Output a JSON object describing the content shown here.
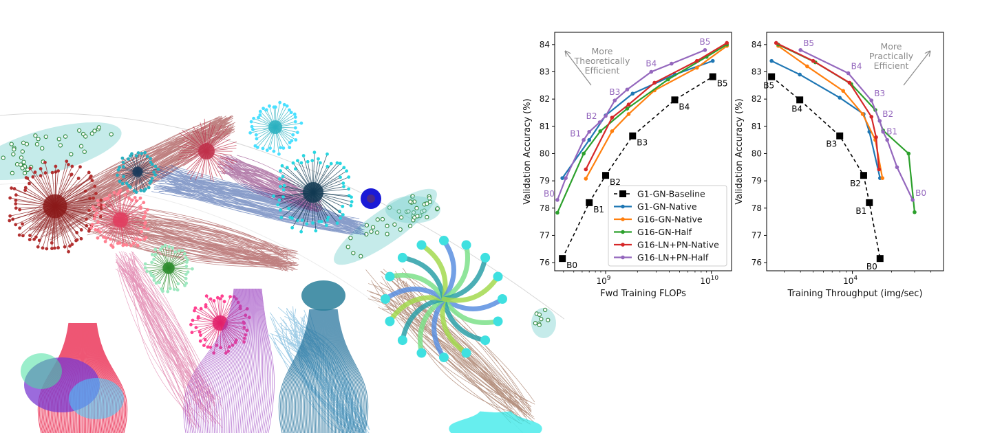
{
  "colors": {
    "baseline": "#000000",
    "g1_native": "#1f77b4",
    "g16_native": "#ff7f0e",
    "g16_half": "#2ca02c",
    "ln_native": "#d62728",
    "ln_half": "#9467bd",
    "annotation": "#8a8a8a"
  },
  "artwork": {
    "name": "network-graph-visualization"
  },
  "chart_data": [
    {
      "type": "line",
      "xscale": "log",
      "xlabel": "Fwd Training FLOPs",
      "ylabel": "Validation Accuracy (%)",
      "xlim": [
        330000000,
        15500000000
      ],
      "ylim": [
        75.7,
        84.45
      ],
      "yticks": [
        76,
        77,
        78,
        79,
        80,
        81,
        82,
        83,
        84
      ],
      "xticks": [
        {
          "value": 1000000000,
          "base": "10",
          "exp": "9"
        },
        {
          "value": 10000000000,
          "base": "10",
          "exp": "10"
        }
      ],
      "annotation": {
        "lines": [
          "More",
          "Theoretically",
          "Efficient"
        ],
        "direction": "up-left"
      },
      "legend": {
        "placement": "lower-right",
        "entries": [
          {
            "label": "G1-GN-Baseline",
            "series": "baseline"
          },
          {
            "label": "G1-GN-Native",
            "series": "g1_native"
          },
          {
            "label": "G16-GN-Native",
            "series": "g16_native"
          },
          {
            "label": "G16-GN-Half",
            "series": "g16_half"
          },
          {
            "label": "G16-LN+PN-Native",
            "series": "ln_native"
          },
          {
            "label": "G16-LN+PN-Half",
            "series": "ln_half"
          }
        ]
      },
      "series": [
        {
          "key": "baseline",
          "name": "G1-GN-Baseline",
          "style": "dashed-square",
          "x": [
            390000000,
            700000000,
            1000000000,
            1800000000,
            4500000000,
            10300000000
          ],
          "y": [
            76.15,
            78.2,
            79.2,
            80.65,
            81.97,
            82.82
          ]
        },
        {
          "key": "g1_native",
          "name": "G1-GN-Native",
          "style": "solid-dot",
          "x": [
            390000000,
            700000000,
            1000000000,
            1800000000,
            4500000000,
            10300000000
          ],
          "y": [
            79.1,
            80.5,
            81.4,
            82.2,
            82.9,
            83.4
          ]
        },
        {
          "key": "g16_native",
          "name": "G16-GN-Native",
          "style": "solid-dot",
          "x": [
            650000000,
            1150000000,
            1650000000,
            2900000000,
            7300000000,
            14000000000
          ],
          "y": [
            79.08,
            80.82,
            81.45,
            82.32,
            83.15,
            83.95
          ]
        },
        {
          "key": "g16_half",
          "name": "G16-GN-Half",
          "style": "solid-dot",
          "x": [
            350000000,
            620000000,
            890000000,
            1600000000,
            3900000000,
            9000000000,
            14000000000
          ],
          "y": [
            77.83,
            80.0,
            80.82,
            81.65,
            82.72,
            83.55,
            84.0
          ]
        },
        {
          "key": "ln_native",
          "name": "G16-LN+PN-Native",
          "style": "solid-dot",
          "x": [
            650000000,
            1150000000,
            1650000000,
            2900000000,
            7300000000,
            14000000000
          ],
          "y": [
            79.42,
            81.32,
            81.8,
            82.6,
            83.4,
            84.06
          ]
        },
        {
          "key": "ln_half",
          "name": "G16-LN+PN-Half",
          "style": "solid-dot",
          "x": [
            350000000,
            420000000,
            620000000,
            700000000,
            880000000,
            1000000000,
            1220000000,
            1600000000,
            2700000000,
            4200000000,
            8700000000
          ],
          "y": [
            78.3,
            79.1,
            80.5,
            80.8,
            81.15,
            81.38,
            81.95,
            82.35,
            83.0,
            83.3,
            83.8
          ]
        }
      ],
      "point_labels": [
        {
          "text": "B0",
          "series": "baseline",
          "index": 0,
          "pos": "below-right"
        },
        {
          "text": "B1",
          "series": "baseline",
          "index": 1,
          "pos": "below-right"
        },
        {
          "text": "B2",
          "series": "baseline",
          "index": 2,
          "pos": "below-right"
        },
        {
          "text": "B3",
          "series": "baseline",
          "index": 3,
          "pos": "below-right"
        },
        {
          "text": "B4",
          "series": "baseline",
          "index": 4,
          "pos": "below-right"
        },
        {
          "text": "B5",
          "series": "baseline",
          "index": 5,
          "pos": "below-right"
        },
        {
          "text": "B0",
          "series": "ln_half",
          "index": 0,
          "pos": "above-left"
        },
        {
          "text": "B1",
          "series": "ln_half",
          "index": 2,
          "pos": "above-left"
        },
        {
          "text": "B2",
          "series": "ln_half",
          "index": 4,
          "pos": "above-left"
        },
        {
          "text": "B3",
          "series": "ln_half",
          "index": 6,
          "pos": "above"
        },
        {
          "text": "B4",
          "series": "ln_half",
          "index": 8,
          "pos": "above"
        },
        {
          "text": "B5",
          "series": "ln_half",
          "index": 10,
          "pos": "above"
        }
      ]
    },
    {
      "type": "line",
      "xscale": "log",
      "xlabel": "Training Throughput (img/sec)",
      "ylabel": "Validation Accuracy (%)",
      "xlim": [
        2200,
        50000
      ],
      "ylim": [
        75.7,
        84.45
      ],
      "yticks": [
        76,
        77,
        78,
        79,
        80,
        81,
        82,
        83,
        84
      ],
      "xticks": [
        {
          "value": 10000,
          "base": "10",
          "exp": "4"
        }
      ],
      "annotation": {
        "lines": [
          "More",
          "Practically",
          "Efficient"
        ],
        "direction": "up-right"
      },
      "series": [
        {
          "key": "baseline",
          "name": "G1-GN-Baseline",
          "style": "dashed-square",
          "x": [
            2400,
            3950,
            8000,
            12200,
            13500,
            16300
          ],
          "y": [
            82.82,
            81.97,
            80.65,
            79.2,
            78.2,
            76.15
          ]
        },
        {
          "key": "g1_native",
          "name": "G1-GN-Native",
          "style": "solid-dot",
          "x": [
            2400,
            3950,
            8000,
            12200,
            13500,
            16300
          ],
          "y": [
            83.4,
            82.9,
            82.05,
            81.45,
            80.8,
            79.1
          ]
        },
        {
          "key": "g16_native",
          "name": "G16-GN-Native",
          "style": "solid-dot",
          "x": [
            2700,
            4500,
            8500,
            12000,
            15000,
            17000
          ],
          "y": [
            83.95,
            83.2,
            82.3,
            81.45,
            80.5,
            79.1
          ]
        },
        {
          "key": "g16_half",
          "name": "G16-GN-Half",
          "style": "solid-dot",
          "x": [
            2700,
            5200,
            9800,
            15000,
            17200,
            27000,
            30000
          ],
          "y": [
            84.0,
            83.35,
            82.55,
            81.6,
            80.85,
            80.0,
            77.85
          ]
        },
        {
          "key": "ln_native",
          "name": "G16-LN+PN-Native",
          "style": "solid-dot",
          "x": [
            2600,
            5000,
            9500,
            14000,
            15200,
            16000
          ],
          "y": [
            84.06,
            83.4,
            82.6,
            81.35,
            80.6,
            79.42
          ]
        },
        {
          "key": "ln_half",
          "name": "G16-LN+PN-Half",
          "style": "solid-dot",
          "x": [
            4000,
            9300,
            14000,
            16200,
            17200,
            18500,
            22000,
            29000
          ],
          "y": [
            83.8,
            82.95,
            81.95,
            81.2,
            80.8,
            80.5,
            79.5,
            78.3
          ]
        }
      ],
      "point_labels": [
        {
          "text": "B5",
          "series": "baseline",
          "index": 0,
          "pos": "below"
        },
        {
          "text": "B4",
          "series": "baseline",
          "index": 1,
          "pos": "below"
        },
        {
          "text": "B3",
          "series": "baseline",
          "index": 2,
          "pos": "below-left"
        },
        {
          "text": "B2",
          "series": "baseline",
          "index": 3,
          "pos": "below-left"
        },
        {
          "text": "B1",
          "series": "baseline",
          "index": 4,
          "pos": "below-left"
        },
        {
          "text": "B0",
          "series": "baseline",
          "index": 5,
          "pos": "below-left"
        },
        {
          "text": "B5",
          "series": "ln_half",
          "index": 0,
          "pos": "above-right"
        },
        {
          "text": "B4",
          "series": "ln_half",
          "index": 1,
          "pos": "above-right"
        },
        {
          "text": "B3",
          "series": "ln_half",
          "index": 2,
          "pos": "above-right"
        },
        {
          "text": "B2",
          "series": "ln_half",
          "index": 3,
          "pos": "above-right"
        },
        {
          "text": "B1",
          "series": "ln_half",
          "index": 4,
          "pos": "right"
        },
        {
          "text": "B0",
          "series": "ln_half",
          "index": 7,
          "pos": "above-right"
        }
      ]
    }
  ]
}
